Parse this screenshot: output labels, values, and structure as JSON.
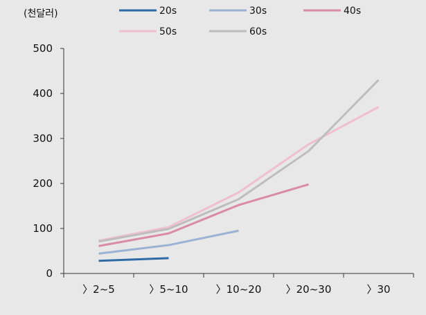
{
  "chart_data": {
    "type": "line",
    "unit_label": "(천달러)",
    "categories": [
      "〉2~5",
      "〉5~10",
      "〉10~20",
      "〉20~30",
      "〉30"
    ],
    "ylim": [
      0,
      500
    ],
    "yticks": [
      0,
      100,
      200,
      300,
      400,
      500
    ],
    "grid": false,
    "legend_position": "top",
    "series": [
      {
        "name": "20s",
        "color": "#2e6aa6",
        "values": [
          28,
          34,
          null,
          null,
          null
        ]
      },
      {
        "name": "30s",
        "color": "#9cb2d4",
        "values": [
          44,
          63,
          95,
          null,
          null
        ]
      },
      {
        "name": "40s",
        "color": "#d98ba1",
        "values": [
          61,
          89,
          152,
          198,
          null
        ]
      },
      {
        "name": "50s",
        "color": "#efbfcc",
        "values": [
          73,
          103,
          180,
          287,
          370
        ]
      },
      {
        "name": "60s",
        "color": "#bdbdbd",
        "values": [
          71,
          99,
          165,
          272,
          430
        ]
      }
    ]
  }
}
